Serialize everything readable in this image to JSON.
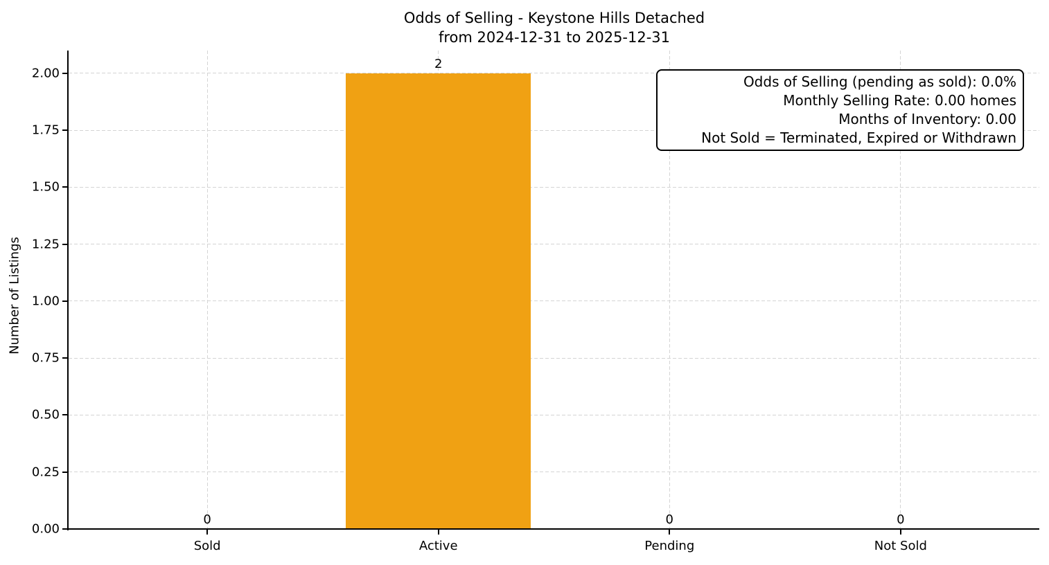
{
  "figure": {
    "title_line1": "Odds of Selling - Keystone Hills Detached",
    "title_line2": "from 2024-12-31 to 2025-12-31",
    "background_color": "#ffffff"
  },
  "annotation_box": {
    "lines": [
      "Odds of Selling (pending as sold): 0.0%",
      "Monthly Selling Rate: 0.00 homes",
      "Months of Inventory: 0.00",
      "Not Sold = Terminated, Expired or Withdrawn"
    ]
  },
  "chart_data": {
    "type": "bar",
    "title": "Odds of Selling - Keystone Hills Detached\nfrom 2024-12-31 to 2025-12-31",
    "categories": [
      "Sold",
      "Active",
      "Pending",
      "Not Sold"
    ],
    "values": [
      0,
      2,
      0,
      0
    ],
    "bar_value_labels": [
      "0",
      "2",
      "0",
      "0"
    ],
    "xlabel": "",
    "ylabel": "Number of Listings",
    "ylim": [
      0,
      2.1
    ],
    "yticks": [
      0,
      0.25,
      0.5,
      0.75,
      1.0,
      1.25,
      1.5,
      1.75,
      2.0
    ],
    "ytick_labels": [
      "0.00",
      "0.25",
      "0.50",
      "0.75",
      "1.00",
      "1.25",
      "1.50",
      "1.75",
      "2.00"
    ],
    "bar_color": "#f0a113",
    "grid": true,
    "grid_style": "dashed",
    "grid_color": "#d4d4d4",
    "axis_color": "#000000",
    "legend_position": "none",
    "annotation_lines": [
      "Odds of Selling (pending as sold): 0.0%",
      "Monthly Selling Rate: 0.00 homes",
      "Months of Inventory: 0.00",
      "Not Sold = Terminated, Expired or Withdrawn"
    ]
  }
}
